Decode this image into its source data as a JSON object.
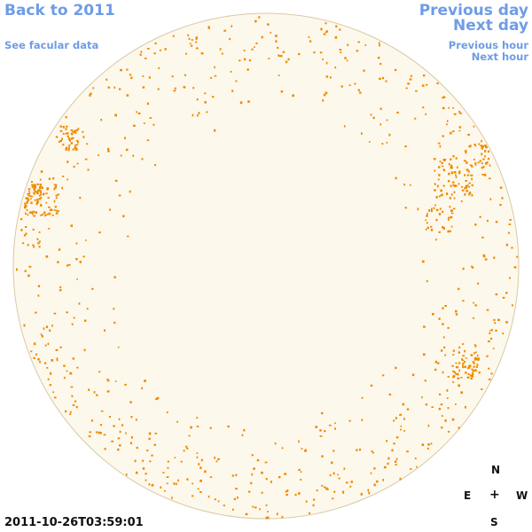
{
  "nav": {
    "back": "Back to 2011",
    "facular": "See facular data",
    "previous_day": "Previous day",
    "next_day": "Next day",
    "previous_hour": "Previous hour",
    "next_hour": "Next hour"
  },
  "timestamp": "2011-10-26T03:59:01",
  "compass": {
    "north": "N",
    "east": "E",
    "center": "+",
    "west": "W",
    "south": "S"
  },
  "colors": {
    "link": "#6f9ce6",
    "disk_fill": "#fdf8ec",
    "disk_edge": "#d9c9a6",
    "facula": "#ee8a00"
  }
}
